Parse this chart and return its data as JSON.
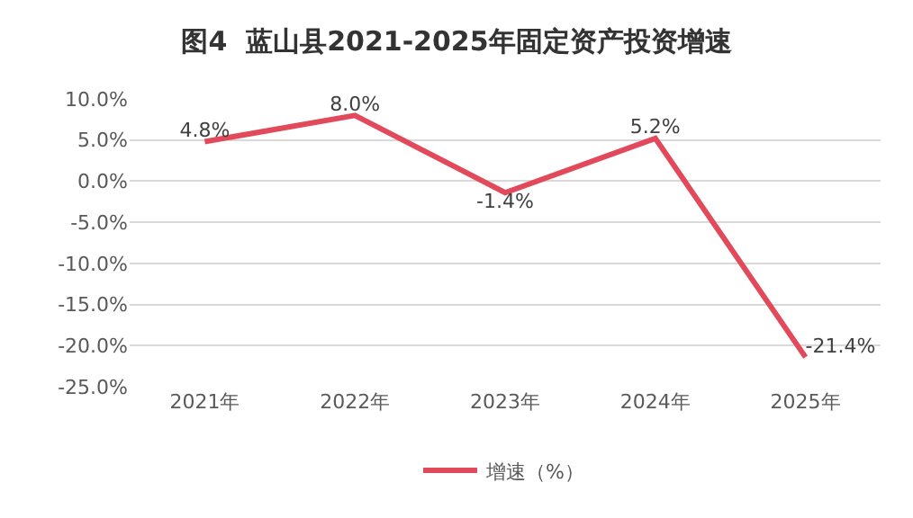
{
  "chart_data": {
    "type": "line",
    "title": "图4  蓝山县2021-2025年固定资产投资增速",
    "categories": [
      "2021年",
      "2022年",
      "2023年",
      "2024年",
      "2025年"
    ],
    "series": [
      {
        "name": "增速（%）",
        "color": "#e2495b",
        "values": [
          4.8,
          8.0,
          -1.4,
          5.2,
          -21.4
        ],
        "value_labels": [
          "4.8%",
          "8.0%",
          "-1.4%",
          "5.2%",
          "-21.4%"
        ]
      }
    ],
    "ylim": [
      -25,
      10
    ],
    "yticks": [
      {
        "value": -25,
        "label": "-25.0%"
      },
      {
        "value": -20,
        "label": "-20.0%"
      },
      {
        "value": -15,
        "label": "-15.0%"
      },
      {
        "value": -10,
        "label": "-10.0%"
      },
      {
        "value": -5,
        "label": "-5.0%"
      },
      {
        "value": 0,
        "label": "0.0%"
      },
      {
        "value": 5,
        "label": "5.0%"
      },
      {
        "value": 10,
        "label": "10.0%"
      }
    ],
    "grid": "y",
    "legend": "bottom",
    "marker": "none",
    "line_style": "solid"
  }
}
